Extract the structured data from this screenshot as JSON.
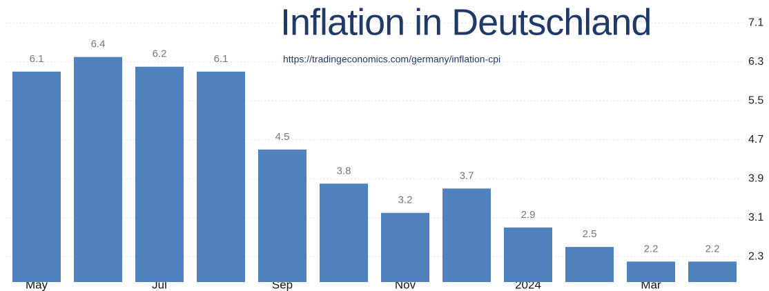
{
  "chart_data": {
    "type": "bar",
    "title": "Inflation in Deutschland",
    "subtitle": "https://tradingeconomics.com/germany/inflation-cpi",
    "categories": [
      "May",
      null,
      "Jul",
      null,
      "Sep",
      null,
      "Nov",
      null,
      "2024",
      null,
      "Mar",
      null
    ],
    "values": [
      6.1,
      6.4,
      6.2,
      6.1,
      4.5,
      3.8,
      3.2,
      3.7,
      2.9,
      2.5,
      2.2,
      2.2
    ],
    "color": "#4f81bd",
    "ylim": [
      1.78,
      7.57
    ],
    "yticks": [
      2.3,
      3.1,
      3.9,
      4.7,
      5.5,
      6.3,
      7.1
    ],
    "grid": true
  }
}
